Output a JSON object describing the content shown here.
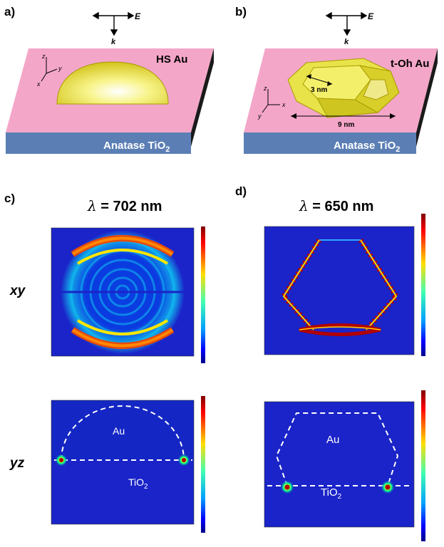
{
  "panels": {
    "a": {
      "letter": "a)",
      "field_label": "E",
      "wave_label": "k",
      "particle_label": "HS Au",
      "substrate_main": "Anatase TiO",
      "substrate_sub": "2",
      "axis_z": "z",
      "axis_y": "y",
      "axis_x": "x"
    },
    "b": {
      "letter": "b)",
      "field_label": "E",
      "wave_label": "k",
      "particle_label": "t-Oh Au",
      "dim_small": "3 nm",
      "dim_large": "9 nm",
      "substrate_main": "Anatase TiO",
      "substrate_sub": "2",
      "axis_z": "z",
      "axis_y": "y",
      "axis_x": "x"
    },
    "c": {
      "letter": "c)",
      "wavelength_symbol": "λ",
      "wavelength_text": " = 702 nm",
      "region_au": "Au",
      "region_tio": "TiO",
      "region_tio_sub": "2"
    },
    "d": {
      "letter": "d)",
      "wavelength_symbol": "λ",
      "wavelength_text": " = 650 nm",
      "region_au": "Au",
      "region_tio": "TiO",
      "region_tio_sub": "2"
    }
  },
  "row_labels": {
    "xy": "xy",
    "yz": "yz"
  },
  "colors": {
    "substrate_top": "#f4a6c8",
    "substrate_side": "#5b7fb5",
    "gold_particle": "#f2ef5a",
    "field_background": "#1a24c8",
    "hot_spot": "#b30000"
  }
}
